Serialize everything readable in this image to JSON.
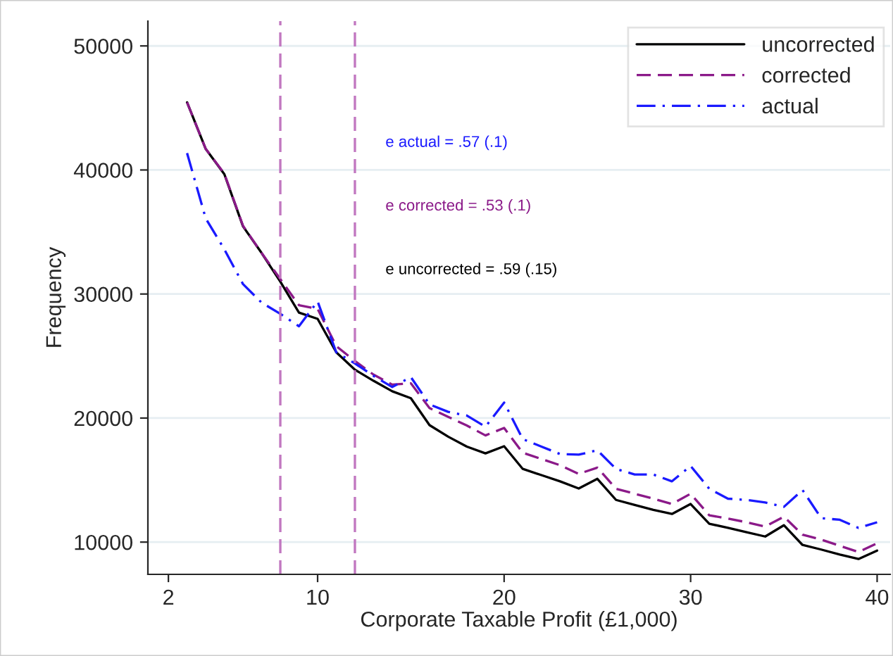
{
  "chart_data": {
    "type": "line",
    "xlabel": "Corporate Taxable Profit (£1,000)",
    "ylabel": "Frequency",
    "x": [
      3,
      4,
      5,
      6,
      7,
      8,
      9,
      10,
      11,
      12,
      13,
      14,
      15,
      16,
      17,
      18,
      19,
      20,
      21,
      22,
      23,
      24,
      25,
      26,
      27,
      28,
      29,
      30,
      31,
      32,
      33,
      34,
      35,
      36,
      37,
      38,
      39,
      40
    ],
    "series": [
      {
        "name": "uncorrected",
        "color": "#000000",
        "line_style": "solid",
        "values": [
          45450,
          41700,
          39660,
          35450,
          33300,
          31000,
          28500,
          28000,
          25300,
          23900,
          23000,
          22160,
          21600,
          19430,
          18500,
          17700,
          17150,
          17730,
          15900,
          15400,
          14900,
          14320,
          15100,
          13400,
          13000,
          12600,
          12270,
          13070,
          11480,
          11150,
          10800,
          10450,
          11360,
          9770,
          9400,
          9000,
          8640,
          9320
        ]
      },
      {
        "name": "corrected",
        "color": "#8b1a89",
        "line_style": "dashed",
        "values": [
          45450,
          41700,
          39700,
          35500,
          33300,
          31200,
          29100,
          28800,
          25800,
          24600,
          23500,
          22700,
          22800,
          20800,
          20100,
          19400,
          18600,
          19200,
          17200,
          16700,
          16200,
          15500,
          16000,
          14300,
          13900,
          13500,
          13070,
          13900,
          12160,
          11900,
          11600,
          11250,
          12050,
          10600,
          10200,
          9700,
          9200,
          9900
        ]
      },
      {
        "name": "actual",
        "color": "#1a1aff",
        "line_style": "dashdot",
        "values": [
          41360,
          36100,
          33600,
          30800,
          29300,
          28400,
          27400,
          29400,
          25300,
          24400,
          23400,
          22500,
          23300,
          21100,
          20500,
          20200,
          19300,
          21250,
          18300,
          17700,
          17100,
          17050,
          17400,
          15900,
          15450,
          15450,
          14900,
          16140,
          14300,
          13500,
          13400,
          13200,
          12840,
          14200,
          11930,
          11800,
          11140,
          11600
        ]
      }
    ],
    "xlim": [
      0.9,
      40.7
    ],
    "xticks": [
      2,
      10,
      20,
      30,
      40
    ],
    "ylim": [
      7400,
      52000
    ],
    "yticks": [
      10000,
      20000,
      30000,
      40000,
      50000
    ],
    "ref_lines": [
      {
        "axis": "x",
        "value": 8,
        "color": "#c177c0",
        "line_style": "dashed"
      },
      {
        "axis": "x",
        "value": 12,
        "color": "#c177c0",
        "line_style": "dashed"
      }
    ],
    "annotations": [
      "e actual = .57 (.1)",
      "e corrected = .53 (.1)",
      "e uncorrected = .59 (.15)"
    ],
    "grid": "y",
    "legend": "top right"
  }
}
